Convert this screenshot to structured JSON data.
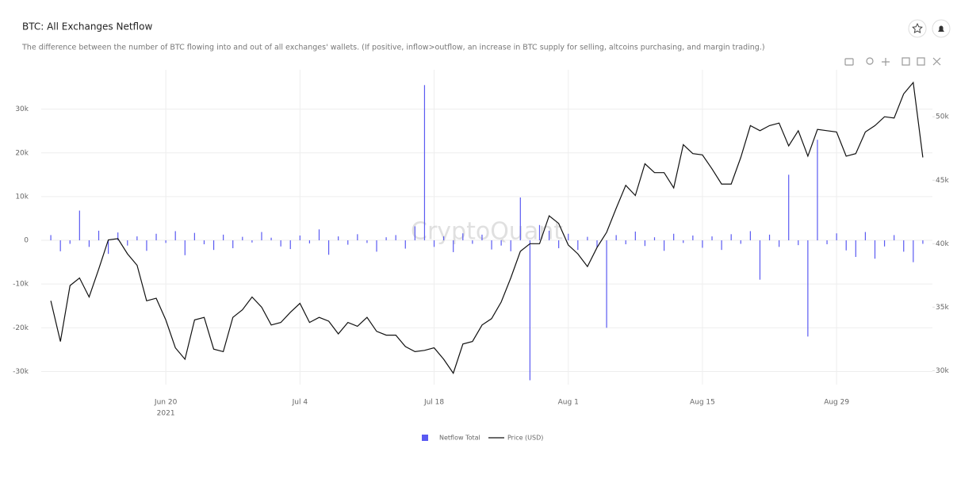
{
  "chart_data": {
    "type": "combo",
    "title": "BTC: All Exchanges Netflow",
    "subtitle": "The difference between the number of BTC flowing into and out of all exchanges' wallets. (If positive, inflow>outflow, an increase in BTC supply for selling, altcoins purchasing, and margin trading.)",
    "watermark": "CryptoQuant",
    "xlim": [
      "2021-06-07",
      "2021-09-08"
    ],
    "xticks": [
      {
        "value": "2021-06-20",
        "label": "Jun 20"
      },
      {
        "value": "2021-07-04",
        "label": "Jul 4"
      },
      {
        "value": "2021-07-18",
        "label": "Jul 18"
      },
      {
        "value": "2021-08-01",
        "label": "Aug 1"
      },
      {
        "value": "2021-08-15",
        "label": "Aug 15"
      },
      {
        "value": "2021-08-29",
        "label": "Aug 29"
      }
    ],
    "xtick_year": "2021",
    "ylim": [
      -33000,
      39000
    ],
    "yticks": [
      {
        "value": -30000,
        "label": "-30k"
      },
      {
        "value": -20000,
        "label": "-20k"
      },
      {
        "value": -10000,
        "label": "-10k"
      },
      0,
      {
        "value": 10000,
        "label": "10k"
      },
      {
        "value": 20000,
        "label": "20k"
      },
      {
        "value": 30000,
        "label": "30k"
      }
    ],
    "y2lim": [
      28900,
      53700
    ],
    "y2ticks": [
      {
        "value": 30000,
        "label": "30k"
      },
      {
        "value": 35000,
        "label": "35k"
      },
      {
        "value": 40000,
        "label": "40k"
      },
      {
        "value": 45000,
        "label": "45k"
      },
      {
        "value": 50000,
        "label": "50k"
      }
    ],
    "grid": true,
    "legend": "bottom",
    "x": [
      "2021-06-08",
      "2021-06-09",
      "2021-06-10",
      "2021-06-11",
      "2021-06-12",
      "2021-06-13",
      "2021-06-14",
      "2021-06-15",
      "2021-06-16",
      "2021-06-17",
      "2021-06-18",
      "2021-06-19",
      "2021-06-20",
      "2021-06-21",
      "2021-06-22",
      "2021-06-23",
      "2021-06-24",
      "2021-06-25",
      "2021-06-26",
      "2021-06-27",
      "2021-06-28",
      "2021-06-29",
      "2021-06-30",
      "2021-07-01",
      "2021-07-02",
      "2021-07-03",
      "2021-07-04",
      "2021-07-05",
      "2021-07-06",
      "2021-07-07",
      "2021-07-08",
      "2021-07-09",
      "2021-07-10",
      "2021-07-11",
      "2021-07-12",
      "2021-07-13",
      "2021-07-14",
      "2021-07-15",
      "2021-07-16",
      "2021-07-17",
      "2021-07-18",
      "2021-07-19",
      "2021-07-20",
      "2021-07-21",
      "2021-07-22",
      "2021-07-23",
      "2021-07-24",
      "2021-07-25",
      "2021-07-26",
      "2021-07-27",
      "2021-07-28",
      "2021-07-29",
      "2021-07-30",
      "2021-07-31",
      "2021-08-01",
      "2021-08-02",
      "2021-08-03",
      "2021-08-04",
      "2021-08-05",
      "2021-08-06",
      "2021-08-07",
      "2021-08-08",
      "2021-08-09",
      "2021-08-10",
      "2021-08-11",
      "2021-08-12",
      "2021-08-13",
      "2021-08-14",
      "2021-08-15",
      "2021-08-16",
      "2021-08-17",
      "2021-08-18",
      "2021-08-19",
      "2021-08-20",
      "2021-08-21",
      "2021-08-22",
      "2021-08-23",
      "2021-08-24",
      "2021-08-25",
      "2021-08-26",
      "2021-08-27",
      "2021-08-28",
      "2021-08-29",
      "2021-08-30",
      "2021-08-31",
      "2021-09-01",
      "2021-09-02",
      "2021-09-03",
      "2021-09-04",
      "2021-09-05",
      "2021-09-06",
      "2021-09-07"
    ],
    "series": [
      {
        "name": "Netflow Total",
        "type": "bar",
        "color": "#5a5af2",
        "values": [
          1200,
          -2500,
          -800,
          6800,
          -1500,
          2200,
          -3100,
          1800,
          -1200,
          900,
          -2400,
          1500,
          -600,
          2100,
          -3400,
          1700,
          -900,
          -2200,
          1300,
          -1800,
          800,
          -500,
          1900,
          600,
          -1400,
          -2000,
          1100,
          -700,
          2500,
          -3300,
          900,
          -1000,
          1400,
          -600,
          -2600,
          700,
          1200,
          -1900,
          3200,
          35500,
          -1500,
          900,
          -2700,
          1600,
          -800,
          1300,
          -2100,
          -1200,
          -2500,
          9800,
          -32000,
          3500,
          2200,
          -1800,
          1500,
          -2200,
          800,
          -1600,
          -20000,
          1200,
          -900,
          2000,
          -1300,
          700,
          -2400,
          1500,
          -600,
          1100,
          -1700,
          900,
          -2200,
          1400,
          -800,
          2100,
          -9000,
          1300,
          -1500,
          15000,
          -1100,
          -22000,
          23000,
          -900,
          1600,
          -2300,
          -3800,
          1900,
          -4200,
          -1400,
          1200,
          -2600,
          -5000,
          -800
        ]
      },
      {
        "name": "Price (USD)",
        "type": "line",
        "axis": "y2",
        "color": "#111111",
        "values": [
          35500,
          32300,
          36700,
          37300,
          35800,
          38000,
          40300,
          40400,
          39200,
          38300,
          35500,
          35700,
          34000,
          31800,
          30900,
          34000,
          34200,
          31700,
          31500,
          34200,
          34800,
          35800,
          35000,
          33600,
          33800,
          34600,
          35300,
          33800,
          34200,
          33900,
          32900,
          33800,
          33500,
          34200,
          33100,
          32800,
          32800,
          31900,
          31500,
          31600,
          31800,
          30900,
          29800,
          32100,
          32300,
          33600,
          34100,
          35400,
          37300,
          39400,
          40000,
          40000,
          42200,
          41600,
          39900,
          39200,
          38200,
          39700,
          40900,
          42800,
          44600,
          43800,
          46300,
          45600,
          45600,
          44400,
          47800,
          47100,
          47000,
          45900,
          44700,
          44700,
          46800,
          49300,
          48900,
          49300,
          49500,
          47700,
          48900,
          46900,
          49000,
          48900,
          48800,
          46900,
          47100,
          48800,
          49300,
          50000,
          49900,
          51800,
          52700,
          46800
        ]
      }
    ]
  }
}
